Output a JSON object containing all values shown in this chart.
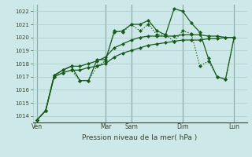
{
  "bg_color": "#cce8e8",
  "grid_color": "#aacccc",
  "line_color": "#1a5c1a",
  "title": "Pression niveau de la mer( hPa )",
  "ylim": [
    1013.5,
    1022.5
  ],
  "yticks": [
    1014,
    1015,
    1016,
    1017,
    1018,
    1019,
    1020,
    1021,
    1022
  ],
  "day_labels": [
    "Ven",
    "Mar",
    "Sam",
    "Dim",
    "Lun"
  ],
  "day_positions": [
    0,
    8,
    11,
    17,
    23
  ],
  "xlim": [
    -0.5,
    24.5
  ],
  "line1": {
    "x": [
      0,
      1,
      2,
      3,
      4,
      5,
      6,
      7,
      8,
      9,
      10,
      11,
      12,
      13,
      14,
      15,
      16,
      17,
      18,
      19,
      20,
      21,
      22,
      23
    ],
    "y": [
      1013.7,
      1014.4,
      1017.0,
      1017.3,
      1017.5,
      1016.7,
      1016.7,
      1017.8,
      1018.2,
      1020.5,
      1020.4,
      1021.0,
      1020.5,
      1021.0,
      1020.2,
      1020.2,
      1019.7,
      1020.5,
      1020.3,
      1017.8,
      1018.2,
      1017.0,
      1016.8,
      1020.0
    ],
    "style": ":",
    "linewidth": 0.9,
    "marker": "D",
    "markersize": 2.0
  },
  "line2": {
    "x": [
      0,
      1,
      2,
      3,
      4,
      5,
      6,
      7,
      8,
      9,
      10,
      11,
      12,
      13,
      14,
      15,
      16,
      17,
      18,
      19,
      20,
      21,
      22,
      23
    ],
    "y": [
      1013.7,
      1014.4,
      1017.0,
      1017.3,
      1017.5,
      1017.5,
      1017.7,
      1017.8,
      1018.0,
      1018.5,
      1018.8,
      1019.0,
      1019.2,
      1019.4,
      1019.5,
      1019.6,
      1019.7,
      1019.8,
      1019.8,
      1019.8,
      1019.9,
      1019.9,
      1020.0,
      1020.0
    ],
    "style": "-",
    "linewidth": 0.9,
    "marker": "D",
    "markersize": 2.0
  },
  "line3": {
    "x": [
      0,
      1,
      2,
      3,
      4,
      5,
      6,
      7,
      8,
      9,
      10,
      11,
      12,
      13,
      14,
      15,
      16,
      17,
      18,
      19,
      20,
      21,
      22,
      23
    ],
    "y": [
      1013.7,
      1014.4,
      1017.1,
      1017.5,
      1017.8,
      1017.8,
      1018.0,
      1018.2,
      1018.5,
      1019.2,
      1019.5,
      1019.8,
      1020.0,
      1020.1,
      1020.1,
      1020.1,
      1020.1,
      1020.2,
      1020.2,
      1020.2,
      1020.1,
      1020.1,
      1020.0,
      1020.0
    ],
    "style": "-",
    "linewidth": 0.9,
    "marker": "D",
    "markersize": 2.0
  },
  "line4": {
    "x": [
      0,
      1,
      2,
      3,
      4,
      5,
      6,
      7,
      8,
      9,
      10,
      11,
      12,
      13,
      14,
      15,
      16,
      17,
      18,
      19,
      20,
      21,
      22,
      23
    ],
    "y": [
      1013.7,
      1014.4,
      1017.1,
      1017.5,
      1017.8,
      1016.7,
      1016.7,
      1018.3,
      1018.3,
      1020.4,
      1020.5,
      1021.0,
      1021.0,
      1021.3,
      1020.5,
      1020.2,
      1022.2,
      1022.0,
      1021.1,
      1020.4,
      1018.4,
      1017.0,
      1016.8,
      1020.0
    ],
    "style": "-",
    "linewidth": 0.9,
    "marker": "D",
    "markersize": 2.0
  }
}
